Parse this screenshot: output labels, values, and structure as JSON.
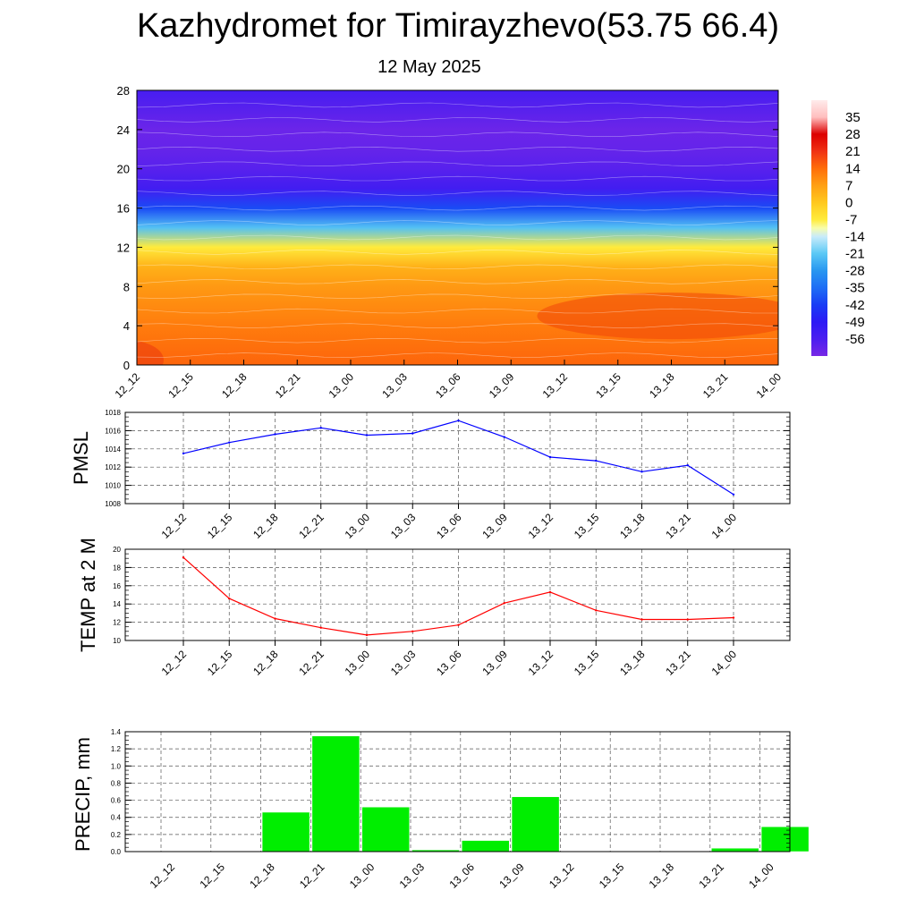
{
  "title": "Kazhydromet for Timirayzhevo(53.75 66.4)",
  "subtitle": "12 May 2025",
  "colors": {
    "pmsl_line": "#0000ff",
    "temp_line": "#ff0000",
    "precip_bar": "#00ee00",
    "background": "#ffffff",
    "axis": "#000000",
    "grid": "#555555"
  },
  "chart_data": [
    {
      "id": "cross-section",
      "type": "heatmap",
      "x_categories": [
        "12_12",
        "12_15",
        "12_18",
        "12_21",
        "13_00",
        "13_03",
        "13_06",
        "13_09",
        "13_12",
        "13_15",
        "13_18",
        "13_21",
        "14_00"
      ],
      "y_ticks": [
        "0",
        "4",
        "8",
        "12",
        "16",
        "20",
        "24",
        "28"
      ],
      "ylim": [
        0,
        28
      ],
      "colorbar_labels": [
        "35",
        "28",
        "21",
        "14",
        "7",
        "0",
        "-7",
        "-14",
        "-21",
        "-28",
        "-35",
        "-42",
        "-49",
        "-56"
      ],
      "colorbar_range": [
        -63,
        42
      ],
      "description_overlay": "wind barbs",
      "temperature_profile": [
        {
          "level": 0,
          "value": 15
        },
        {
          "level": 4,
          "value": 12
        },
        {
          "level": 8,
          "value": 8
        },
        {
          "level": 10,
          "value": 4
        },
        {
          "level": 12,
          "value": -7
        },
        {
          "level": 14,
          "value": -22
        },
        {
          "level": 16,
          "value": -40
        },
        {
          "level": 18,
          "value": -54
        },
        {
          "level": 20,
          "value": -58
        },
        {
          "level": 22,
          "value": -60
        },
        {
          "level": 24,
          "value": -61
        },
        {
          "level": 26,
          "value": -58
        },
        {
          "level": 28,
          "value": -55
        }
      ]
    },
    {
      "id": "pmsl",
      "type": "line",
      "ylabel": "PMSL",
      "ylim": [
        1008,
        1018
      ],
      "y_ticks": [
        "1008",
        "1010",
        "1012",
        "1014",
        "1016",
        "1018"
      ],
      "categories": [
        "12_12",
        "12_15",
        "12_18",
        "12_21",
        "13_00",
        "13_03",
        "13_06",
        "13_09",
        "13_12",
        "13_15",
        "13_18",
        "13_21",
        "14_00"
      ],
      "values": [
        1013.5,
        1014.7,
        1015.6,
        1016.3,
        1015.5,
        1015.7,
        1017.1,
        1015.3,
        1013.1,
        1012.7,
        1011.5,
        1012.2,
        1009.0
      ],
      "grid": true
    },
    {
      "id": "temp",
      "type": "line",
      "ylabel": "TEMP at 2 M",
      "ylim": [
        10,
        20
      ],
      "y_ticks": [
        "10",
        "12",
        "14",
        "16",
        "18",
        "20"
      ],
      "categories": [
        "12_12",
        "12_15",
        "12_18",
        "12_21",
        "13_00",
        "13_03",
        "13_06",
        "13_09",
        "13_12",
        "13_15",
        "13_18",
        "13_21",
        "14_00"
      ],
      "values": [
        19.1,
        14.6,
        12.4,
        11.4,
        10.6,
        11.0,
        11.7,
        14.1,
        15.3,
        13.3,
        12.3,
        12.3,
        12.5
      ],
      "grid": true
    },
    {
      "id": "precip",
      "type": "bar",
      "ylabel": "PRECIP, mm",
      "ylim": [
        0,
        1.4
      ],
      "y_ticks": [
        "0.0",
        "0.2",
        "0.4",
        "0.6",
        "0.8",
        "1.0",
        "1.2",
        "1.4"
      ],
      "categories": [
        "12_12",
        "12_15",
        "12_18",
        "12_21",
        "13_00",
        "13_03",
        "13_06",
        "13_09",
        "13_12",
        "13_15",
        "13_18",
        "13_21",
        "14_00"
      ],
      "values": [
        0,
        0,
        0.46,
        1.35,
        0.52,
        0.02,
        0.13,
        0.64,
        0,
        0,
        0,
        0.04,
        0.29
      ],
      "grid": true
    }
  ]
}
